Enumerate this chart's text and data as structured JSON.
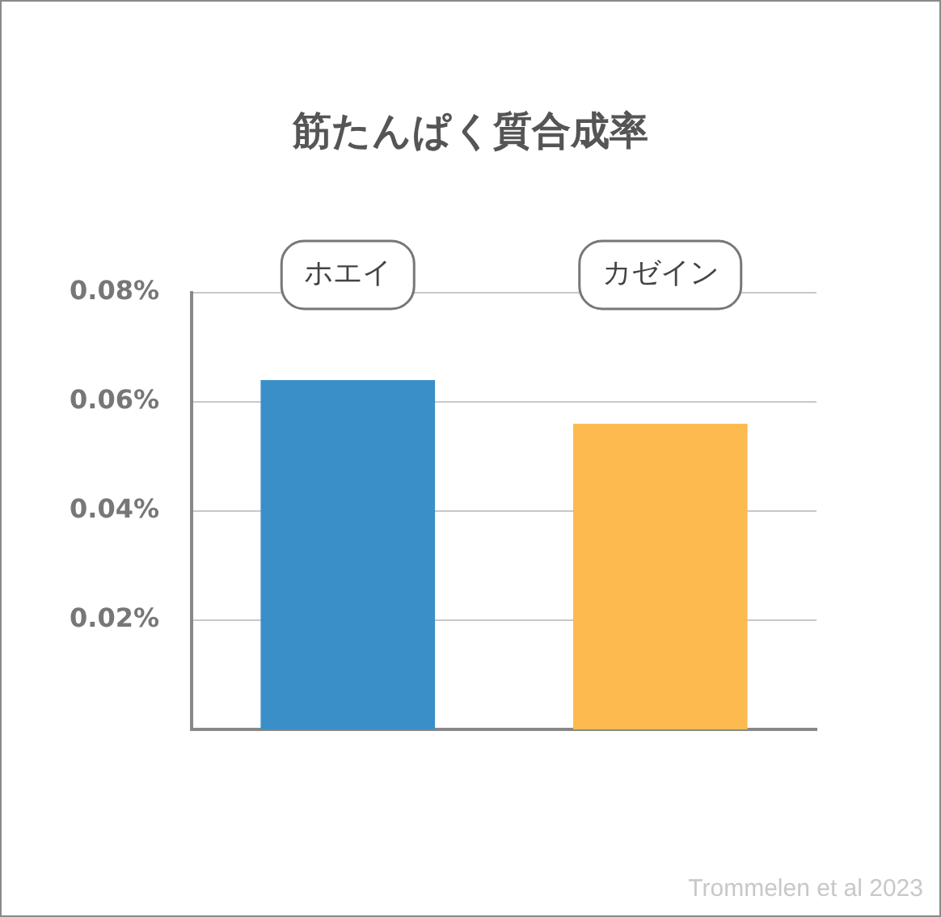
{
  "chart_data": {
    "type": "bar",
    "title": "筋たんぱく質合成率",
    "categories": [
      "ホエイ",
      "カゼイン"
    ],
    "values": [
      0.064,
      0.056
    ],
    "colors": [
      "#3a8fc9",
      "#fdbb4f"
    ],
    "ylim": [
      0,
      0.08
    ],
    "yticks": [
      {
        "value": 0.02,
        "label": "0.02%"
      },
      {
        "value": 0.04,
        "label": "0.04%"
      },
      {
        "value": 0.06,
        "label": "0.06%"
      },
      {
        "value": 0.08,
        "label": "0.08%"
      }
    ],
    "grid": "y",
    "legend": false,
    "annotations": [
      "Trommelen et al 2023"
    ]
  }
}
